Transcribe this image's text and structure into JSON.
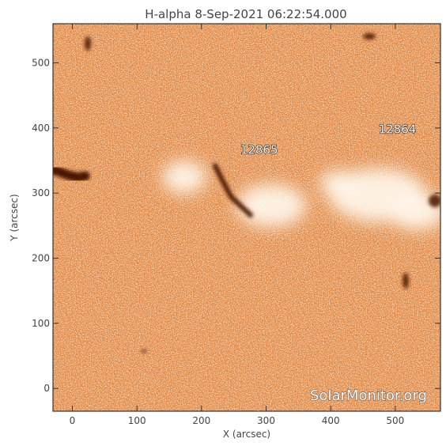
{
  "plot": {
    "title": "H-alpha  8-Sep-2021  06:22:54.000",
    "xlabel": "X (arcsec)",
    "ylabel": "Y (arcsec)",
    "watermark": "SolarMonitor.org",
    "colors": {
      "background": "#ffffff",
      "frame": "#333333",
      "disk_base": "#e2823b",
      "disk_bright": "#fff6ea",
      "filament": "#4b1706",
      "text": "#444444"
    }
  },
  "axes": {
    "xlim": [
      -30,
      570
    ],
    "ylim": [
      -35,
      560
    ],
    "x_ticks": [
      {
        "value": 0,
        "label": "0"
      },
      {
        "value": 100,
        "label": "100"
      },
      {
        "value": 200,
        "label": "200"
      },
      {
        "value": 300,
        "label": "300"
      },
      {
        "value": 400,
        "label": "400"
      },
      {
        "value": 500,
        "label": "500"
      }
    ],
    "y_ticks": [
      {
        "value": 0,
        "label": "0"
      },
      {
        "value": 100,
        "label": "100"
      },
      {
        "value": 200,
        "label": "200"
      },
      {
        "value": 300,
        "label": "300"
      },
      {
        "value": 400,
        "label": "400"
      },
      {
        "value": 500,
        "label": "500"
      }
    ]
  },
  "active_regions": [
    {
      "label": "12865",
      "x": 260,
      "y": 360
    },
    {
      "label": "12864",
      "x": 474,
      "y": 392
    }
  ],
  "features": {
    "filament": [
      [
        221,
        342
      ],
      [
        232,
        320
      ],
      [
        246,
        294
      ],
      [
        263,
        278
      ],
      [
        276,
        266
      ]
    ],
    "limb_filament": [
      [
        -28,
        335
      ],
      [
        -18,
        332
      ],
      [
        -8,
        328
      ],
      [
        8,
        324
      ],
      [
        20,
        326
      ]
    ]
  }
}
